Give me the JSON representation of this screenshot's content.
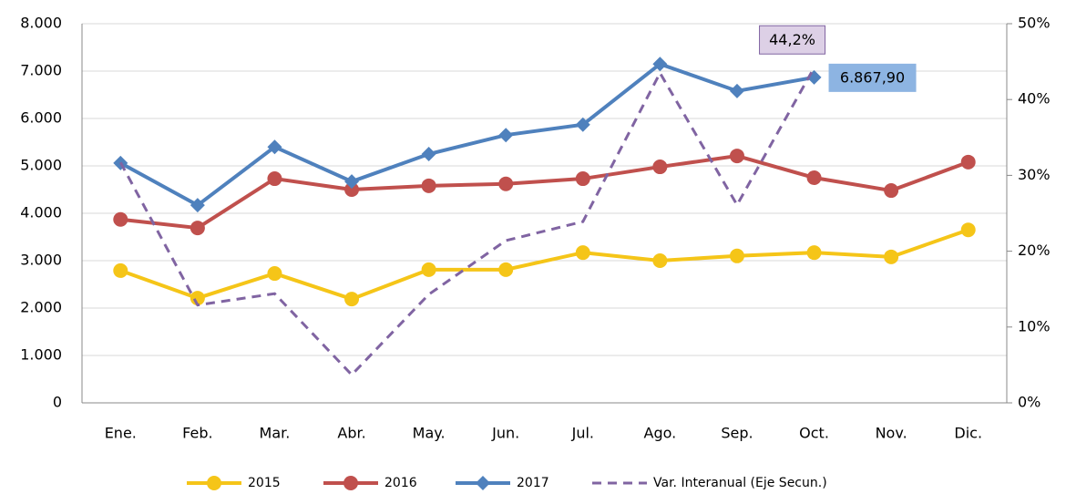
{
  "chart_data": {
    "type": "line",
    "categories": [
      "Ene.",
      "Feb.",
      "Mar.",
      "Abr.",
      "May.",
      "Jun.",
      "Jul.",
      "Ago.",
      "Sep.",
      "Oct.",
      "Nov.",
      "Dic."
    ],
    "series": [
      {
        "name": "2015",
        "color": "#f5c518",
        "marker": "circle",
        "values": [
          2790,
          2210,
          2730,
          2190,
          2810,
          2810,
          3170,
          3000,
          3100,
          3170,
          3080,
          3650
        ]
      },
      {
        "name": "2016",
        "color": "#c0504d",
        "marker": "circle",
        "values": [
          3870,
          3690,
          4730,
          4500,
          4580,
          4620,
          4730,
          4980,
          5210,
          4750,
          4480,
          5080
        ]
      },
      {
        "name": "2017",
        "color": "#4f81bd",
        "marker": "diamond",
        "values": [
          5060,
          4170,
          5400,
          4670,
          5250,
          5650,
          5870,
          7150,
          6580,
          6867.9,
          null,
          null
        ],
        "value_labels": [
          null,
          null,
          null,
          null,
          null,
          null,
          null,
          null,
          null,
          "6.867,90",
          null,
          null
        ]
      },
      {
        "name": "Var. Interanual (Eje Secun.)",
        "color": "#8064a2",
        "dashed": true,
        "axis": "y2",
        "values": [
          31.7,
          12.9,
          14.4,
          3.7,
          14.3,
          21.4,
          23.9,
          43.5,
          26.1,
          44.2,
          null,
          null
        ],
        "value_labels": [
          null,
          null,
          null,
          null,
          null,
          null,
          null,
          null,
          null,
          "44,2%",
          null,
          null
        ]
      }
    ],
    "ylim": [
      0,
      8000
    ],
    "yticks": [
      0,
      {
        "value": 1000,
        "label": "1.000"
      },
      {
        "value": 2000,
        "label": "2.000"
      },
      {
        "value": 3000,
        "label": "3.000"
      },
      {
        "value": 4000,
        "label": "4.000"
      },
      {
        "value": 5000,
        "label": "5.000"
      },
      {
        "value": 6000,
        "label": "6.000"
      },
      {
        "value": 7000,
        "label": "7.000"
      },
      {
        "value": 8000,
        "label": "8.000"
      }
    ],
    "y2lim": [
      0,
      50
    ],
    "y2ticks": [
      {
        "value": 0,
        "label": "0%"
      },
      {
        "value": 10,
        "label": "10%"
      },
      {
        "value": 20,
        "label": "20%"
      },
      {
        "value": 30,
        "label": "30%"
      },
      {
        "value": 40,
        "label": "40%"
      },
      {
        "value": 50,
        "label": "50%"
      }
    ],
    "grid": true,
    "legend": "bottom"
  }
}
